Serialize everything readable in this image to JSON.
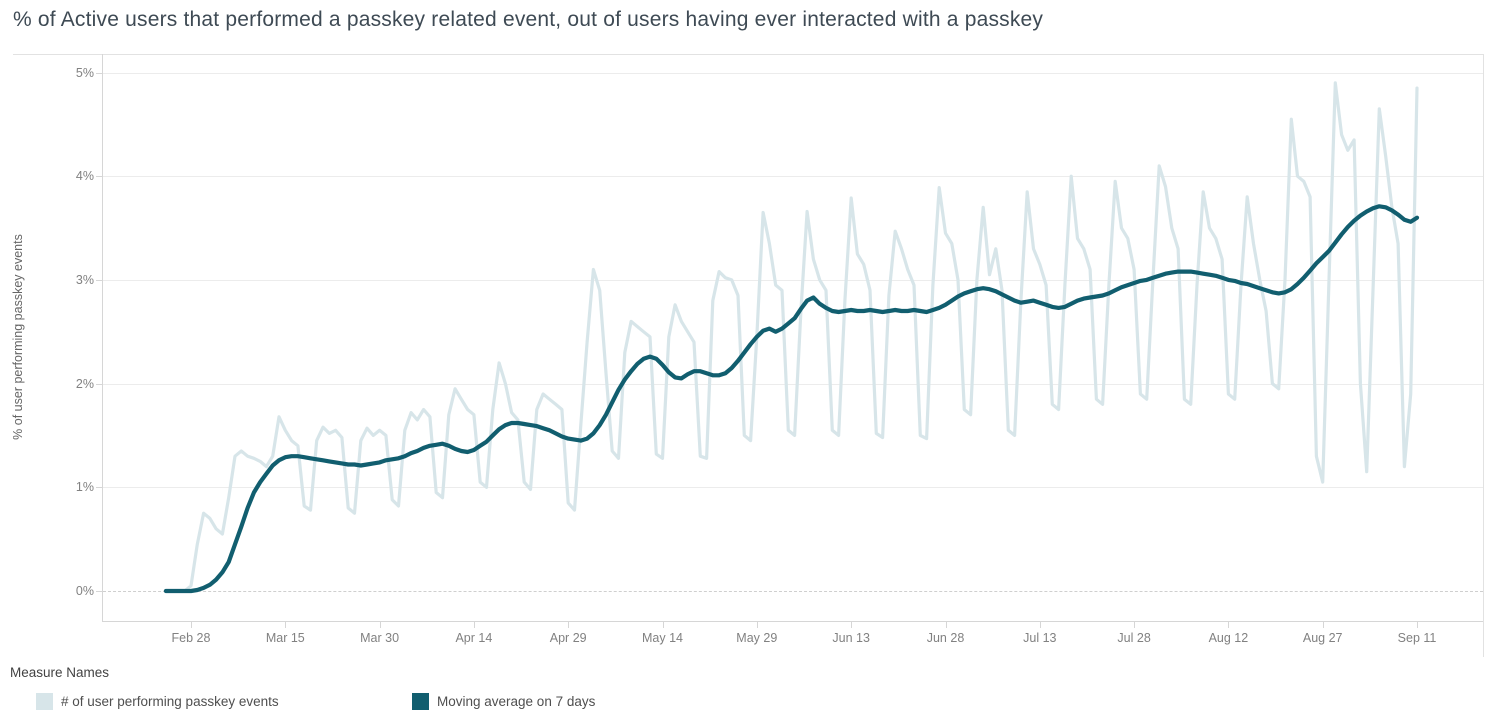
{
  "title": "% of Active users that performed a passkey related event, out of users having ever interacted with a passkey",
  "y_axis": {
    "label": "% of user performing passkey events",
    "ticks": [
      "0%",
      "1%",
      "2%",
      "3%",
      "4%",
      "5%"
    ]
  },
  "legend": {
    "title": "Measure Names",
    "items": [
      {
        "label": "# of user performing passkey events",
        "color": "#d7e5e9"
      },
      {
        "label": "Moving average on 7 days",
        "color": "#115e6f"
      }
    ]
  },
  "colors": {
    "daily_line": "#d7e5e9",
    "moving_avg_line": "#115e6f",
    "gridline": "#ececec",
    "axis_text": "#818181",
    "title_text": "#3e4a54"
  },
  "chart_data": {
    "type": "line",
    "title": "% of Active users that performed a passkey related event, out of users having ever interacted with a passkey",
    "xlabel": "",
    "ylabel": "% of user performing passkey events",
    "ylim": [
      0,
      5
    ],
    "y_unit": "%",
    "grid": "horizontal",
    "legend_position": "bottom-left",
    "x_is_daily_dates": true,
    "x_tick_labels": [
      "Feb 28",
      "Mar 15",
      "Mar 30",
      "Apr 14",
      "Apr 29",
      "May 14",
      "May 29",
      "Jun 13",
      "Jun 28",
      "Jul 13",
      "Jul 28",
      "Aug 12",
      "Aug 27",
      "Sep 11"
    ],
    "x_tick_day_indices": [
      4,
      19,
      34,
      49,
      64,
      79,
      94,
      109,
      124,
      139,
      154,
      169,
      184,
      199
    ],
    "series": [
      {
        "name": "# of user performing passkey events",
        "color": "#d7e5e9",
        "stroke_width": 3.2,
        "values": [
          0,
          0,
          0,
          0,
          0.05,
          0.45,
          0.75,
          0.7,
          0.6,
          0.55,
          0.9,
          1.3,
          1.35,
          1.3,
          1.28,
          1.25,
          1.2,
          1.3,
          1.68,
          1.55,
          1.45,
          1.4,
          0.82,
          0.78,
          1.45,
          1.58,
          1.52,
          1.55,
          1.48,
          0.8,
          0.75,
          1.45,
          1.57,
          1.5,
          1.55,
          1.5,
          0.88,
          0.82,
          1.55,
          1.72,
          1.65,
          1.75,
          1.68,
          0.95,
          0.9,
          1.7,
          1.95,
          1.85,
          1.75,
          1.7,
          1.05,
          1.0,
          1.75,
          2.2,
          2.0,
          1.72,
          1.65,
          1.05,
          0.98,
          1.75,
          1.9,
          1.85,
          1.8,
          1.75,
          0.85,
          0.78,
          1.6,
          2.4,
          3.1,
          2.9,
          2.1,
          1.35,
          1.28,
          2.3,
          2.6,
          2.55,
          2.5,
          2.45,
          1.32,
          1.28,
          2.45,
          2.76,
          2.6,
          2.5,
          2.4,
          1.3,
          1.28,
          2.8,
          3.08,
          3.02,
          3.0,
          2.85,
          1.5,
          1.45,
          2.45,
          3.65,
          3.35,
          2.95,
          2.9,
          1.55,
          1.5,
          2.7,
          3.66,
          3.2,
          3.0,
          2.9,
          1.55,
          1.5,
          2.8,
          3.79,
          3.25,
          3.15,
          2.9,
          1.52,
          1.48,
          2.85,
          3.47,
          3.3,
          3.1,
          2.95,
          1.5,
          1.47,
          2.95,
          3.89,
          3.45,
          3.35,
          3.0,
          1.75,
          1.7,
          3.0,
          3.7,
          3.05,
          3.3,
          2.9,
          1.55,
          1.5,
          2.8,
          3.85,
          3.3,
          3.15,
          2.95,
          1.8,
          1.75,
          2.95,
          4.0,
          3.4,
          3.3,
          3.1,
          1.85,
          1.8,
          2.95,
          3.95,
          3.5,
          3.4,
          3.1,
          1.9,
          1.85,
          3.0,
          4.1,
          3.9,
          3.5,
          3.3,
          1.85,
          1.8,
          2.95,
          3.85,
          3.5,
          3.4,
          3.2,
          1.9,
          1.85,
          2.95,
          3.8,
          3.35,
          3.0,
          2.7,
          2.0,
          1.95,
          3.0,
          4.55,
          4.0,
          3.95,
          3.8,
          1.3,
          1.05,
          3.0,
          4.9,
          4.4,
          4.25,
          4.35,
          2.0,
          1.15,
          2.9,
          4.65,
          4.2,
          3.7,
          3.35,
          1.2,
          1.9,
          4.85
        ]
      },
      {
        "name": "Moving average on 7 days",
        "color": "#115e6f",
        "stroke_width": 4.2,
        "values": [
          0,
          0,
          0,
          0,
          0,
          0.01,
          0.03,
          0.06,
          0.11,
          0.18,
          0.28,
          0.45,
          0.62,
          0.8,
          0.95,
          1.05,
          1.13,
          1.21,
          1.26,
          1.29,
          1.3,
          1.3,
          1.29,
          1.28,
          1.27,
          1.26,
          1.25,
          1.24,
          1.23,
          1.22,
          1.22,
          1.21,
          1.22,
          1.23,
          1.24,
          1.26,
          1.27,
          1.28,
          1.3,
          1.33,
          1.35,
          1.38,
          1.4,
          1.41,
          1.42,
          1.4,
          1.37,
          1.35,
          1.34,
          1.36,
          1.4,
          1.44,
          1.5,
          1.56,
          1.6,
          1.62,
          1.62,
          1.61,
          1.6,
          1.59,
          1.57,
          1.55,
          1.52,
          1.49,
          1.47,
          1.46,
          1.45,
          1.47,
          1.52,
          1.6,
          1.7,
          1.82,
          1.94,
          2.04,
          2.12,
          2.19,
          2.24,
          2.26,
          2.24,
          2.18,
          2.11,
          2.06,
          2.05,
          2.09,
          2.12,
          2.12,
          2.1,
          2.08,
          2.08,
          2.1,
          2.15,
          2.22,
          2.3,
          2.38,
          2.45,
          2.51,
          2.53,
          2.5,
          2.53,
          2.58,
          2.63,
          2.72,
          2.8,
          2.83,
          2.77,
          2.73,
          2.7,
          2.69,
          2.7,
          2.71,
          2.7,
          2.7,
          2.71,
          2.7,
          2.69,
          2.7,
          2.71,
          2.7,
          2.7,
          2.71,
          2.7,
          2.69,
          2.71,
          2.73,
          2.76,
          2.8,
          2.84,
          2.87,
          2.89,
          2.91,
          2.92,
          2.91,
          2.89,
          2.86,
          2.83,
          2.8,
          2.78,
          2.79,
          2.8,
          2.78,
          2.76,
          2.74,
          2.73,
          2.74,
          2.77,
          2.8,
          2.82,
          2.83,
          2.84,
          2.85,
          2.87,
          2.9,
          2.93,
          2.95,
          2.97,
          2.99,
          3.0,
          3.02,
          3.04,
          3.06,
          3.07,
          3.08,
          3.08,
          3.08,
          3.07,
          3.06,
          3.05,
          3.04,
          3.02,
          3.0,
          2.99,
          2.97,
          2.96,
          2.94,
          2.92,
          2.9,
          2.88,
          2.87,
          2.88,
          2.91,
          2.96,
          3.02,
          3.09,
          3.16,
          3.22,
          3.28,
          3.36,
          3.44,
          3.51,
          3.57,
          3.62,
          3.66,
          3.69,
          3.71,
          3.7,
          3.67,
          3.63,
          3.58,
          3.56,
          3.6
        ]
      }
    ]
  }
}
